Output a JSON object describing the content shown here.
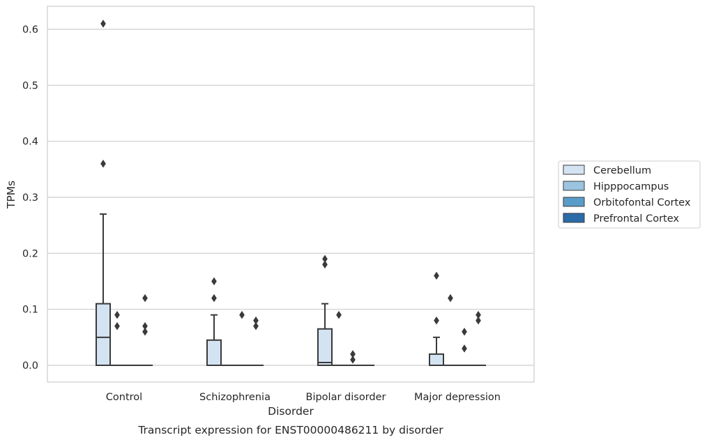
{
  "chart_data": {
    "type": "box",
    "title": "Transcript expression for ENST00000486211 by disorder",
    "xlabel": "Disorder",
    "ylabel": "TPMs",
    "categories": [
      "Control",
      "Schizophrenia",
      "Bipolar disorder",
      "Major depression"
    ],
    "ylim": [
      -0.03,
      0.64
    ],
    "yticks": [
      "0.0",
      "0.1",
      "0.2",
      "0.3",
      "0.4",
      "0.5",
      "0.6"
    ],
    "grid": true,
    "legend_position": "right",
    "series": [
      {
        "name": "Cerebellum",
        "color": "#d4e3f2",
        "boxes": [
          {
            "category": "Control",
            "q1": 0.0,
            "median": 0.05,
            "q3": 0.11,
            "whisker_low": 0.0,
            "whisker_high": 0.27,
            "outliers": [
              0.61,
              0.36
            ]
          },
          {
            "category": "Schizophrenia",
            "q1": 0.0,
            "median": 0.0,
            "q3": 0.045,
            "whisker_low": 0.0,
            "whisker_high": 0.09,
            "outliers": [
              0.15,
              0.12
            ]
          },
          {
            "category": "Bipolar disorder",
            "q1": 0.0,
            "median": 0.005,
            "q3": 0.065,
            "whisker_low": 0.0,
            "whisker_high": 0.11,
            "outliers": [
              0.19,
              0.18
            ]
          },
          {
            "category": "Major depression",
            "q1": 0.0,
            "median": 0.0,
            "q3": 0.02,
            "whisker_low": 0.0,
            "whisker_high": 0.05,
            "outliers": [
              0.16,
              0.08
            ]
          }
        ]
      },
      {
        "name": "Hipppocampus",
        "color": "#9ac4e0",
        "boxes": [
          {
            "category": "Control",
            "q1": 0.0,
            "median": 0.0,
            "q3": 0.0,
            "whisker_low": 0.0,
            "whisker_high": 0.0,
            "outliers": [
              0.09,
              0.07
            ]
          },
          {
            "category": "Schizophrenia",
            "q1": 0.0,
            "median": 0.0,
            "q3": 0.0,
            "whisker_low": 0.0,
            "whisker_high": 0.0,
            "outliers": []
          },
          {
            "category": "Bipolar disorder",
            "q1": 0.0,
            "median": 0.0,
            "q3": 0.0,
            "whisker_low": 0.0,
            "whisker_high": 0.0,
            "outliers": [
              0.09
            ]
          },
          {
            "category": "Major depression",
            "q1": 0.0,
            "median": 0.0,
            "q3": 0.0,
            "whisker_low": 0.0,
            "whisker_high": 0.0,
            "outliers": [
              0.12
            ]
          }
        ]
      },
      {
        "name": "Orbitofontal Cortex",
        "color": "#5a9cc9",
        "boxes": [
          {
            "category": "Control",
            "q1": 0.0,
            "median": 0.0,
            "q3": 0.0,
            "whisker_low": 0.0,
            "whisker_high": 0.0,
            "outliers": []
          },
          {
            "category": "Schizophrenia",
            "q1": 0.0,
            "median": 0.0,
            "q3": 0.0,
            "whisker_low": 0.0,
            "whisker_high": 0.0,
            "outliers": [
              0.09
            ]
          },
          {
            "category": "Bipolar disorder",
            "q1": 0.0,
            "median": 0.0,
            "q3": 0.0,
            "whisker_low": 0.0,
            "whisker_high": 0.0,
            "outliers": [
              0.02,
              0.01
            ]
          },
          {
            "category": "Major depression",
            "q1": 0.0,
            "median": 0.0,
            "q3": 0.0,
            "whisker_low": 0.0,
            "whisker_high": 0.0,
            "outliers": [
              0.06,
              0.03
            ]
          }
        ]
      },
      {
        "name": "Prefrontal Cortex",
        "color": "#2b6ba8",
        "boxes": [
          {
            "category": "Control",
            "q1": 0.0,
            "median": 0.0,
            "q3": 0.0,
            "whisker_low": 0.0,
            "whisker_high": 0.0,
            "outliers": [
              0.12,
              0.07,
              0.06
            ]
          },
          {
            "category": "Schizophrenia",
            "q1": 0.0,
            "median": 0.0,
            "q3": 0.0,
            "whisker_low": 0.0,
            "whisker_high": 0.0,
            "outliers": [
              0.08,
              0.07
            ]
          },
          {
            "category": "Bipolar disorder",
            "q1": 0.0,
            "median": 0.0,
            "q3": 0.0,
            "whisker_low": 0.0,
            "whisker_high": 0.0,
            "outliers": []
          },
          {
            "category": "Major depression",
            "q1": 0.0,
            "median": 0.0,
            "q3": 0.0,
            "whisker_low": 0.0,
            "whisker_high": 0.0,
            "outliers": [
              0.09,
              0.08
            ]
          }
        ]
      }
    ]
  }
}
